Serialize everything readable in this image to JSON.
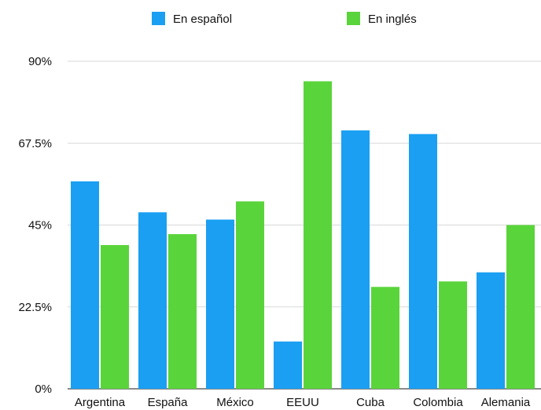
{
  "chart_data": {
    "type": "bar",
    "categories": [
      "Argentina",
      "España",
      "México",
      "EEUU",
      "Cuba",
      "Colombia",
      "Alemania"
    ],
    "series": [
      {
        "name": "En español",
        "color": "#1a9ff2",
        "values": [
          57,
          48.5,
          46.5,
          13,
          71,
          70,
          32
        ]
      },
      {
        "name": "En inglés",
        "color": "#5ad43b",
        "values": [
          39.5,
          42.5,
          51.5,
          84.5,
          28,
          29.5,
          45
        ]
      }
    ],
    "ylim": [
      0,
      90
    ],
    "yticks": [
      0,
      22.5,
      45,
      67.5,
      90
    ],
    "ytick_labels": [
      "0%",
      "22.5%",
      "45%",
      "67.5%",
      "90%"
    ],
    "grid": true,
    "legend_position": "top"
  }
}
